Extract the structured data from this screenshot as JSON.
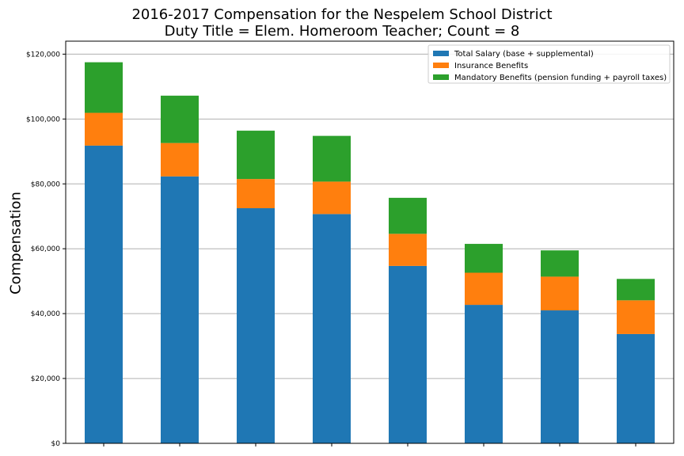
{
  "chart_data": {
    "type": "bar",
    "stacked": true,
    "title": "2016-2017 Compensation for the Nespelem School District",
    "subtitle": "Duty Title = Elem. Homeroom Teacher; Count = 8",
    "xlabel": "",
    "ylabel": "Compensation",
    "ylim": [
      0,
      124000
    ],
    "yticks": [
      0,
      20000,
      40000,
      60000,
      80000,
      100000,
      120000
    ],
    "ytick_labels": [
      "$0",
      "$20,000",
      "$40,000",
      "$60,000",
      "$80,000",
      "$100,000",
      "$120,000"
    ],
    "grid": "horizontal",
    "legend_position": "top-right",
    "categories": [
      "",
      "",
      "",
      "",
      "",
      "",
      "",
      ""
    ],
    "series": [
      {
        "name": "Total Salary (base + supplemental)",
        "color": "#1f77b4",
        "values": [
          91800,
          82300,
          72500,
          70700,
          54700,
          42700,
          41000,
          33700
        ]
      },
      {
        "name": "Insurance Benefits",
        "color": "#ff7f0e",
        "values": [
          10100,
          10300,
          9000,
          10000,
          9900,
          9900,
          10400,
          10400
        ]
      },
      {
        "name": "Mandatory Benefits (pension funding + payroll taxes)",
        "color": "#2ca02c",
        "values": [
          15600,
          14600,
          14900,
          14100,
          11100,
          8900,
          8100,
          6600
        ]
      }
    ]
  }
}
